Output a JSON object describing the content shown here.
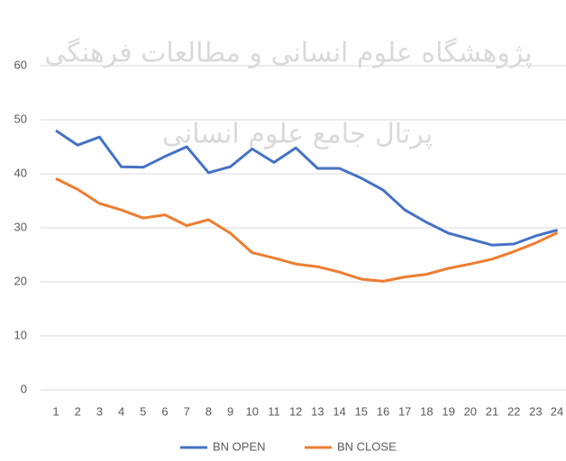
{
  "chart_data": {
    "type": "line",
    "watermark": [
      "پژوهشگاه علوم انسانی و مطالعات فرهنگی",
      "پرتال جامع علوم انسانی"
    ],
    "categories": [
      "1",
      "2",
      "3",
      "4",
      "5",
      "6",
      "7",
      "8",
      "9",
      "10",
      "11",
      "12",
      "13",
      "14",
      "15",
      "16",
      "17",
      "18",
      "19",
      "20",
      "21",
      "22",
      "23",
      "24"
    ],
    "series": [
      {
        "name": "BN OPEN",
        "color": "#4472c4",
        "values": [
          48,
          45.3,
          46.8,
          41.3,
          41.2,
          43.2,
          45,
          40.2,
          41.3,
          44.6,
          42.1,
          44.8,
          41,
          41,
          39.2,
          37,
          33.3,
          31,
          29,
          27.9,
          26.8,
          27,
          28.5,
          29.6
        ]
      },
      {
        "name": "BN CLOSE",
        "color": "#ed7d31",
        "values": [
          39.1,
          37.1,
          34.5,
          33.3,
          31.8,
          32.4,
          30.4,
          31.5,
          29,
          25.4,
          24.4,
          23.3,
          22.8,
          21.8,
          20.5,
          20.1,
          20.9,
          21.4,
          22.5,
          23.3,
          24.2,
          25.6,
          27.2,
          29.1
        ]
      }
    ],
    "ylim": [
      0,
      60
    ],
    "yticks": [
      0,
      10,
      20,
      30,
      40,
      50,
      60
    ],
    "grid": true,
    "legend": "bottom"
  }
}
